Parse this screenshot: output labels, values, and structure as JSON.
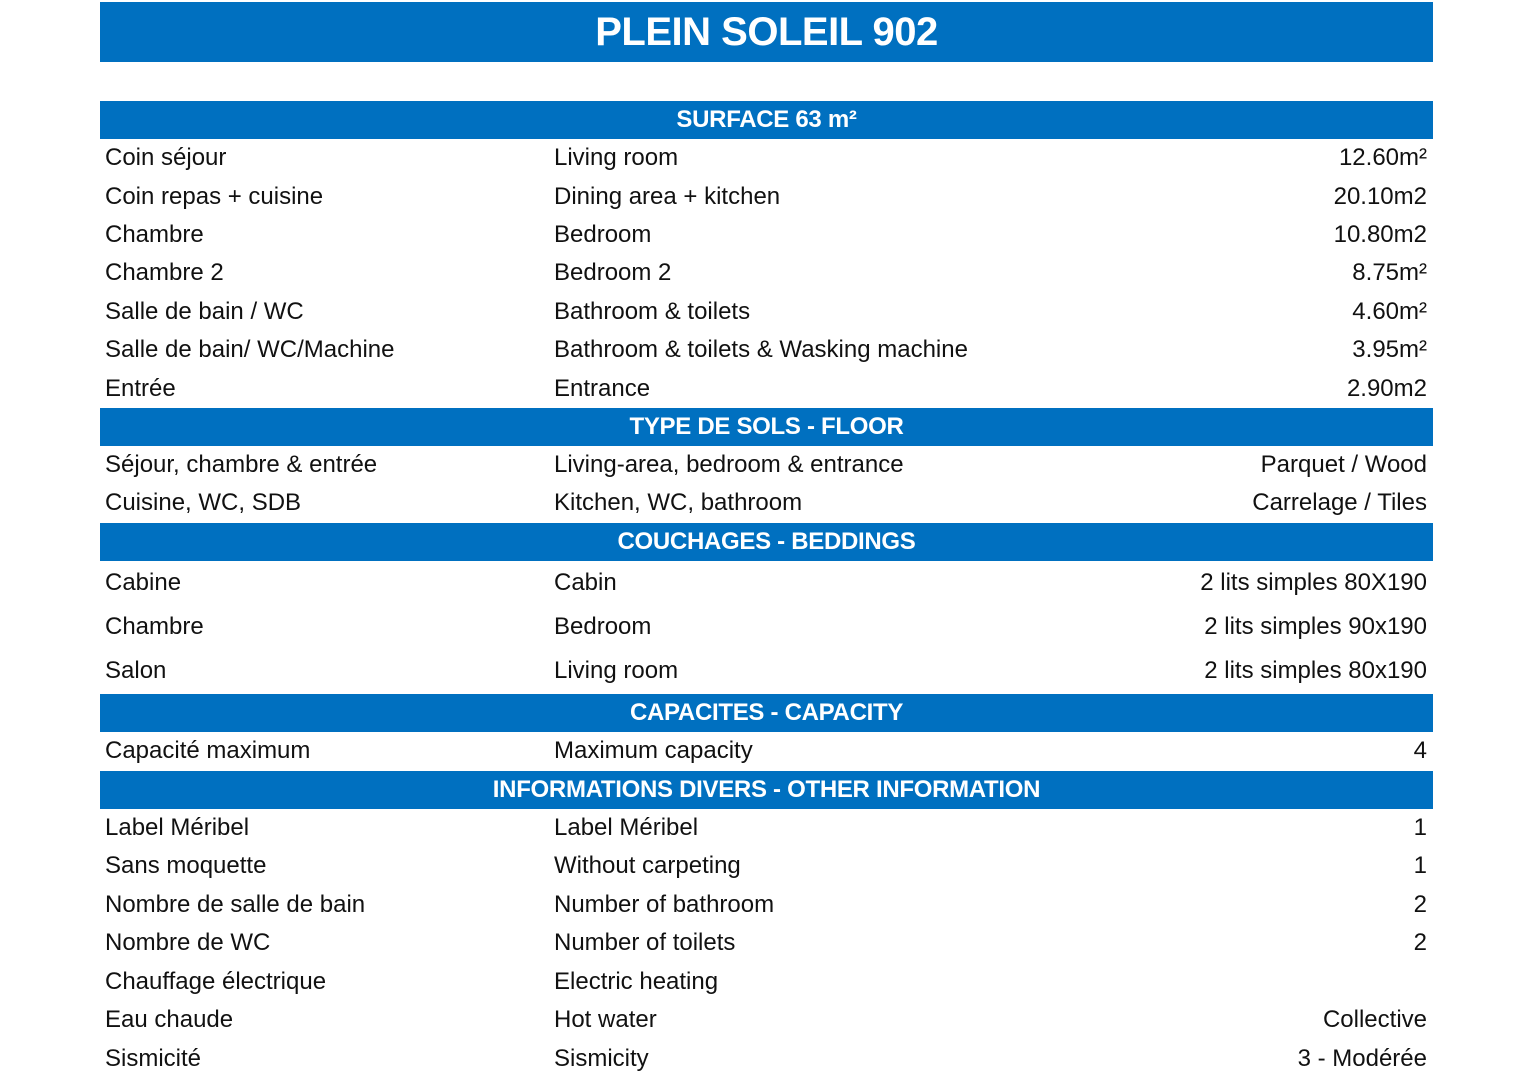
{
  "title": "PLEIN SOLEIL 902",
  "accent_color": "#0070c0",
  "sections": [
    {
      "title": "SURFACE 63 m²",
      "row_height": 38.4,
      "rows": [
        [
          "Coin séjour",
          "Living room",
          "12.60m²"
        ],
        [
          "Coin repas + cuisine",
          "Dining area + kitchen",
          "20.10m2"
        ],
        [
          "Chambre",
          "Bedroom",
          "10.80m2"
        ],
        [
          "Chambre 2",
          "Bedroom 2",
          "8.75m²"
        ],
        [
          "Salle de bain / WC",
          "Bathroom & toilets",
          "4.60m²"
        ],
        [
          "Salle de bain/ WC/Machine",
          "Bathroom & toilets & Wasking machine",
          "3.95m²"
        ],
        [
          "Entrée",
          "Entrance",
          "2.90m2"
        ]
      ]
    },
    {
      "title": "TYPE DE SOLS - FLOOR",
      "row_height": 38.5,
      "rows": [
        [
          "Séjour, chambre & entrée",
          "Living-area, bedroom & entrance",
          "Parquet / Wood"
        ],
        [
          "Cuisine, WC, SDB",
          "Kitchen, WC, bathroom",
          "Carrelage / Tiles"
        ]
      ]
    },
    {
      "title": "COUCHAGES - BEDDINGS",
      "row_height": 44.3,
      "rows": [
        [
          "Cabine",
          "Cabin",
          "2 lits simples 80X190"
        ],
        [
          "Chambre",
          "Bedroom",
          "2 lits simples 90x190"
        ],
        [
          "Salon",
          "Living room",
          "2 lits simples 80x190"
        ]
      ]
    },
    {
      "title": "CAPACITES - CAPACITY",
      "row_height": 39,
      "rows": [
        [
          "Capacité maximum",
          "Maximum capacity",
          "4"
        ]
      ]
    },
    {
      "title": "INFORMATIONS DIVERS - OTHER INFORMATION",
      "row_height": 38.5,
      "rows": [
        [
          "Label Méribel",
          "Label Méribel",
          "1"
        ],
        [
          "Sans moquette",
          "Without carpeting",
          "1"
        ],
        [
          "Nombre de salle de bain",
          "Number of bathroom",
          "2"
        ],
        [
          "Nombre de WC",
          "Number of toilets",
          "2"
        ],
        [
          "Chauffage électrique",
          "Electric heating",
          ""
        ],
        [
          "Eau chaude",
          "Hot water",
          "Collective"
        ],
        [
          "Sismicité",
          "Sismicity",
          "3 - Modérée"
        ]
      ]
    }
  ]
}
